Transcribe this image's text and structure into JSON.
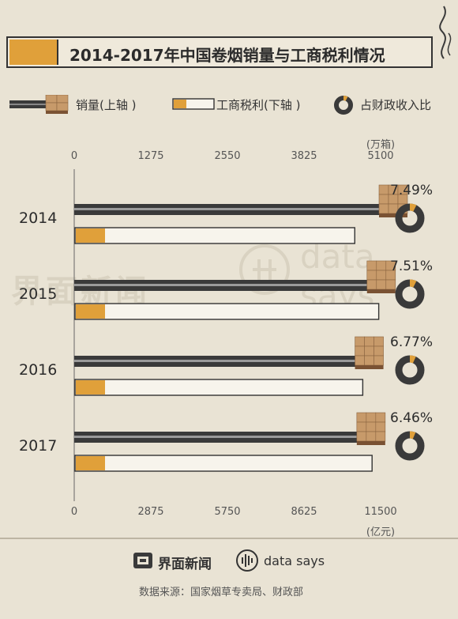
{
  "header": {
    "title": "2014-2017年中国卷烟销量与工商税利情况"
  },
  "legend": {
    "sales": "销量(上轴 )",
    "tax": "工商税利(下轴 )",
    "share": "占财政收入比"
  },
  "axes": {
    "top_unit": "(万箱)",
    "bottom_unit": "(亿元)"
  },
  "chart_data": {
    "type": "bar",
    "categories": [
      "2014",
      "2015",
      "2016",
      "2017"
    ],
    "top_axis": {
      "ticks": [
        "0",
        "1275",
        "2550",
        "3825",
        "5100"
      ],
      "lim": [
        0,
        5100
      ],
      "unit": "万箱"
    },
    "bottom_axis": {
      "ticks": [
        "0",
        "2875",
        "5750",
        "8625",
        "11500"
      ],
      "lim": [
        0,
        11500
      ],
      "unit": "亿元"
    },
    "series": [
      {
        "name": "销量(上轴 )",
        "axis": "top",
        "values": [
          5100,
          4900,
          4700,
          4730
        ]
      },
      {
        "name": "工商税利(下轴 )",
        "axis": "bottom",
        "values": [
          10500,
          11400,
          10800,
          11150
        ]
      },
      {
        "name": "占财政收入比",
        "values": [
          7.49,
          7.51,
          6.77,
          6.46
        ],
        "labels": [
          "7.49%",
          "7.51%",
          "6.77%",
          "6.46%"
        ]
      }
    ],
    "colors": {
      "sales": "#3a3a3a",
      "tax_tip": "#e0a03a",
      "tax_body": "#f7f4ec",
      "donut": "#3a3a3a",
      "donut_slice": "#e0a03a"
    }
  },
  "watermark": {
    "brand_cn": "界面新闻",
    "brand_en": "data says"
  },
  "footer": {
    "brand_cn": "界面新闻",
    "brand_en": "data says",
    "source": "数据来源：国家烟草专卖局、财政部"
  }
}
